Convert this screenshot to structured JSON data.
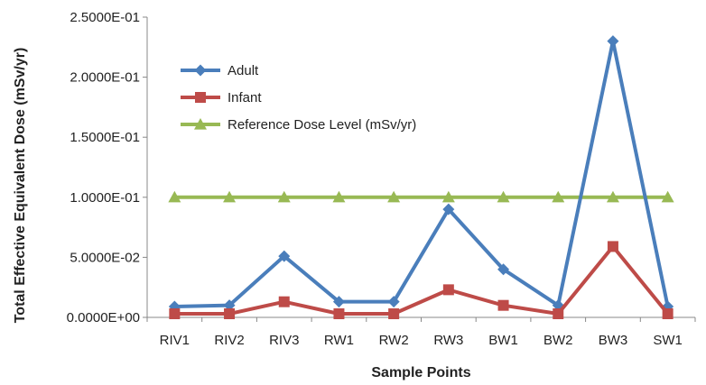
{
  "chart_data": {
    "type": "line",
    "title": "",
    "xlabel": "Sample Points",
    "ylabel": "Total Effective Equivalent Dose (mSv/yr)",
    "categories": [
      "RIV1",
      "RIV2",
      "RIV3",
      "RW1",
      "RW2",
      "RW3",
      "BW1",
      "BW2",
      "BW3",
      "SW1"
    ],
    "ylim": [
      0,
      0.25
    ],
    "yticks": [
      {
        "value": 0,
        "label": "0.0000E+00"
      },
      {
        "value": 0.05,
        "label": "5.0000E-02"
      },
      {
        "value": 0.1,
        "label": "1.0000E-01"
      },
      {
        "value": 0.15,
        "label": "1.5000E-01"
      },
      {
        "value": 0.2,
        "label": "2.0000E-01"
      },
      {
        "value": 0.25,
        "label": "2.5000E-01"
      }
    ],
    "grid": false,
    "legend_position": "top-left",
    "series": [
      {
        "name": "Adult",
        "color": "#4a7ebb",
        "marker": "diamond",
        "values": [
          0.009,
          0.01,
          0.051,
          0.013,
          0.013,
          0.09,
          0.04,
          0.01,
          0.23,
          0.009
        ]
      },
      {
        "name": "Infant",
        "color": "#be4b48",
        "marker": "square",
        "values": [
          0.003,
          0.003,
          0.013,
          0.003,
          0.003,
          0.023,
          0.01,
          0.003,
          0.059,
          0.003
        ]
      },
      {
        "name": "Reference Dose Level (mSv/yr)",
        "color": "#98b954",
        "marker": "triangle",
        "values": [
          0.1,
          0.1,
          0.1,
          0.1,
          0.1,
          0.1,
          0.1,
          0.1,
          0.1,
          0.1
        ]
      }
    ]
  }
}
